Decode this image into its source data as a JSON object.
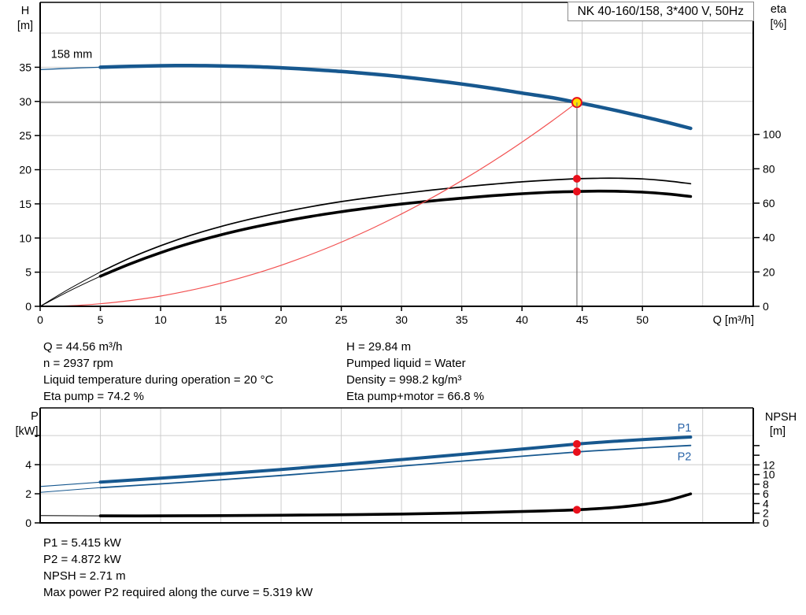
{
  "colors": {
    "curve_blue": "#17588F",
    "label_blue": "#2A64A8",
    "curve_black": "#000000",
    "system_red": "#F25050",
    "duty_red": "#E8101C",
    "duty_yellow": "#FFE000",
    "grid": "#CCCCCC",
    "duty_line": "#787878",
    "axis": "#000000"
  },
  "chart_data": [
    {
      "type": "line",
      "title": "NK 40-160/158, 3*400 V, 50Hz",
      "xlabel": "Q [m³/h]",
      "ylabel_left": [
        "H",
        "[m]"
      ],
      "ylabel_right": [
        "eta",
        "[%]"
      ],
      "xlim": [
        0,
        59.2
      ],
      "ylim_left": [
        0,
        44.5
      ],
      "ylim_right": [
        0,
        176.8
      ],
      "grid": true,
      "x_ticks": [
        0,
        5,
        10,
        15,
        20,
        25,
        30,
        35,
        40,
        45,
        50
      ],
      "x_grid": [
        5,
        10,
        15,
        20,
        25,
        30,
        35,
        40,
        45,
        50,
        55
      ],
      "y_grid_left": [
        5,
        10,
        15,
        20,
        25,
        30,
        35,
        40
      ],
      "y_ticks_left": [
        0,
        5,
        10,
        15,
        20,
        25,
        30,
        35
      ],
      "y_ticks_right": [
        0,
        20,
        40,
        60,
        80,
        100
      ],
      "y_extra_ticks_left": [],
      "y_extra_ticks_right": [],
      "series": [
        {
          "name": "head-curve-158mm",
          "label": "158 mm",
          "label_at": {
            "q": 0.9,
            "v": 36.4
          },
          "label_color": "black",
          "axis": "left",
          "color": "blue",
          "width": 4.5,
          "thin_until": 5,
          "points": [
            [
              0,
              34.65
            ],
            [
              2.5,
              34.85
            ],
            [
              5,
              35.0
            ],
            [
              7.5,
              35.14
            ],
            [
              10,
              35.22
            ],
            [
              12.5,
              35.25
            ],
            [
              15,
              35.2
            ],
            [
              17.5,
              35.1
            ],
            [
              20,
              34.92
            ],
            [
              22.5,
              34.68
            ],
            [
              25,
              34.38
            ],
            [
              27.5,
              34.02
            ],
            [
              30,
              33.6
            ],
            [
              32.5,
              33.1
            ],
            [
              35,
              32.55
            ],
            [
              37.5,
              31.92
            ],
            [
              40,
              31.22
            ],
            [
              42.5,
              30.55
            ],
            [
              44.56,
              29.84
            ],
            [
              46,
              29.35
            ],
            [
              48,
              28.6
            ],
            [
              50,
              27.8
            ],
            [
              52,
              26.95
            ],
            [
              54,
              26.05
            ]
          ]
        },
        {
          "name": "eta-pump-curve",
          "axis": "right",
          "color": "black",
          "width": 1.7,
          "thin_until": 5,
          "points": [
            [
              0,
              0
            ],
            [
              2.5,
              10.5
            ],
            [
              5,
              20.0
            ],
            [
              7.5,
              28.2
            ],
            [
              10,
              35.2
            ],
            [
              12.5,
              41.3
            ],
            [
              15,
              46.4
            ],
            [
              17.5,
              50.8
            ],
            [
              20,
              54.6
            ],
            [
              22.5,
              58.0
            ],
            [
              25,
              60.9
            ],
            [
              27.5,
              63.4
            ],
            [
              30,
              65.6
            ],
            [
              32.5,
              67.6
            ],
            [
              35,
              69.4
            ],
            [
              37.5,
              71.0
            ],
            [
              40,
              72.4
            ],
            [
              42.5,
              73.5
            ],
            [
              44.56,
              74.2
            ],
            [
              46.5,
              74.5
            ],
            [
              48,
              74.5
            ],
            [
              50,
              74.1
            ],
            [
              52,
              73.0
            ],
            [
              54,
              71.3
            ]
          ]
        },
        {
          "name": "eta-pump-motor-curve",
          "axis": "right",
          "color": "black",
          "width": 3.6,
          "thin_until": 5,
          "points": [
            [
              0,
              0
            ],
            [
              2.5,
              9.2
            ],
            [
              5,
              17.5
            ],
            [
              7.5,
              24.8
            ],
            [
              10,
              31.2
            ],
            [
              12.5,
              36.8
            ],
            [
              15,
              41.6
            ],
            [
              17.5,
              45.7
            ],
            [
              20,
              49.2
            ],
            [
              22.5,
              52.3
            ],
            [
              25,
              55.0
            ],
            [
              27.5,
              57.4
            ],
            [
              30,
              59.5
            ],
            [
              32.5,
              61.3
            ],
            [
              35,
              62.9
            ],
            [
              37.5,
              64.3
            ],
            [
              40,
              65.5
            ],
            [
              42.5,
              66.4
            ],
            [
              44.56,
              66.8
            ],
            [
              46.5,
              67.0
            ],
            [
              48,
              66.9
            ],
            [
              50,
              66.4
            ],
            [
              52,
              65.4
            ],
            [
              54,
              63.9
            ]
          ]
        },
        {
          "name": "system-curve",
          "axis": "left",
          "color": "red",
          "width": 1.2,
          "thin_until": 0,
          "points": [
            [
              0,
              0
            ],
            [
              2.5,
              0.09
            ],
            [
              5,
              0.38
            ],
            [
              7.5,
              0.85
            ],
            [
              10,
              1.5
            ],
            [
              12.5,
              2.35
            ],
            [
              15,
              3.38
            ],
            [
              17.5,
              4.6
            ],
            [
              20,
              6.01
            ],
            [
              22.5,
              7.61
            ],
            [
              25,
              9.39
            ],
            [
              27.5,
              11.36
            ],
            [
              30,
              13.52
            ],
            [
              32.5,
              15.87
            ],
            [
              35,
              18.41
            ],
            [
              37.5,
              21.13
            ],
            [
              40,
              24.04
            ],
            [
              42.5,
              27.14
            ],
            [
              44.56,
              29.84
            ]
          ]
        }
      ],
      "duty": {
        "q": 44.56,
        "head": 29.84,
        "eta_pump": 74.2,
        "eta_pump_motor": 66.8
      }
    },
    {
      "type": "line",
      "title": "",
      "xlabel": "",
      "ylabel_left": [
        "P",
        "[kW]"
      ],
      "ylabel_right": [
        "NPSH",
        "[m]"
      ],
      "xlim": [
        0,
        59.2
      ],
      "ylim_left": [
        0,
        7.9
      ],
      "ylim_right": [
        0,
        23.8
      ],
      "grid": true,
      "x_ticks": [],
      "x_grid": [
        5,
        10,
        15,
        20,
        25,
        30,
        35,
        40,
        45,
        50,
        55
      ],
      "y_grid_left": [
        2,
        4,
        6
      ],
      "y_ticks_left": [
        0,
        2,
        4
      ],
      "y_ticks_right": [
        0,
        2,
        4,
        6,
        8,
        10,
        12
      ],
      "y_extra_ticks_left": [
        6
      ],
      "y_extra_ticks_right": [
        14,
        16
      ],
      "series": [
        {
          "name": "p1-power-curve",
          "label": "P1",
          "label_at": {
            "q": 52.9,
            "v": 6.28
          },
          "label_color": "blue",
          "axis": "left",
          "color": "blue",
          "width": 4.0,
          "thin_until": 5,
          "points": [
            [
              0,
              2.5
            ],
            [
              5,
              2.8
            ],
            [
              10,
              3.07
            ],
            [
              15,
              3.36
            ],
            [
              20,
              3.67
            ],
            [
              25,
              4.0
            ],
            [
              30,
              4.35
            ],
            [
              35,
              4.71
            ],
            [
              40,
              5.07
            ],
            [
              44.56,
              5.415
            ],
            [
              48,
              5.62
            ],
            [
              51,
              5.77
            ],
            [
              54,
              5.9
            ]
          ]
        },
        {
          "name": "p2-power-curve",
          "label": "P2",
          "label_at": {
            "q": 52.9,
            "v": 4.3
          },
          "label_color": "blue",
          "axis": "left",
          "color": "blue",
          "width": 1.8,
          "thin_until": 5,
          "points": [
            [
              0,
              2.1
            ],
            [
              5,
              2.42
            ],
            [
              10,
              2.68
            ],
            [
              15,
              2.96
            ],
            [
              20,
              3.26
            ],
            [
              25,
              3.57
            ],
            [
              30,
              3.9
            ],
            [
              35,
              4.24
            ],
            [
              40,
              4.58
            ],
            [
              44.56,
              4.872
            ],
            [
              48,
              5.05
            ],
            [
              51,
              5.19
            ],
            [
              54,
              5.319
            ]
          ]
        },
        {
          "name": "npsh-curve",
          "axis": "right",
          "color": "black",
          "width": 3.6,
          "thin_until": 5,
          "points": [
            [
              0,
              1.5
            ],
            [
              5,
              1.45
            ],
            [
              10,
              1.45
            ],
            [
              15,
              1.5
            ],
            [
              20,
              1.58
            ],
            [
              25,
              1.68
            ],
            [
              30,
              1.82
            ],
            [
              35,
              2.05
            ],
            [
              40,
              2.35
            ],
            [
              42.5,
              2.52
            ],
            [
              44.56,
              2.71
            ],
            [
              46,
              2.9
            ],
            [
              48,
              3.25
            ],
            [
              50,
              3.8
            ],
            [
              52,
              4.6
            ],
            [
              54,
              6.0
            ]
          ]
        }
      ],
      "duty": {
        "q": 44.56,
        "p1": 5.415,
        "p2": 4.872,
        "npsh": 2.71
      }
    }
  ],
  "info_block": {
    "left": [
      "Q = 44.56 m³/h",
      "n = 2937 rpm",
      "Liquid temperature during operation = 20 °C",
      "Eta pump = 74.2 %"
    ],
    "right": [
      "H = 29.84 m",
      "Pumped liquid = Water",
      "Density = 998.2 kg/m³",
      "Eta pump+motor = 66.8 %"
    ]
  },
  "footer_block": {
    "lines": [
      "P1 = 5.415 kW",
      "P2 = 4.872 kW",
      "NPSH = 2.71 m",
      "Max power P2 required along the curve = 5.319 kW"
    ]
  }
}
